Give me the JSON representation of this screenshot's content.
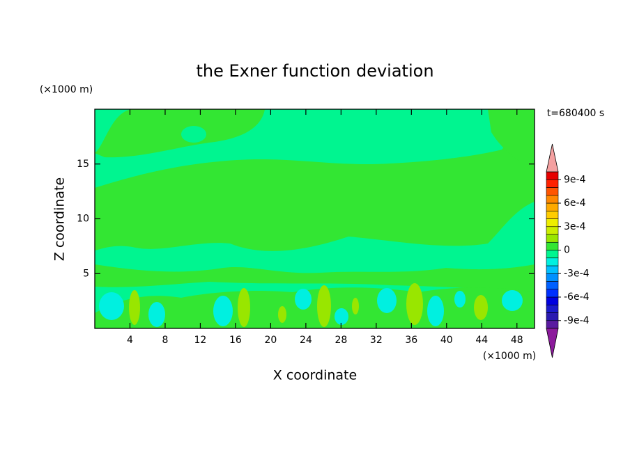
{
  "chart_data": {
    "type": "contour",
    "title": "the Exner function deviation",
    "x_label": "X coordinate",
    "y_label": "Z coordinate",
    "x_unit": "(×1000 m)",
    "y_unit": "(×1000 m)",
    "time_label": "t=680400 s",
    "xlim": [
      0,
      50
    ],
    "xticks": [
      4,
      8,
      12,
      16,
      20,
      24,
      28,
      32,
      36,
      40,
      44,
      48
    ],
    "ylim": [
      0,
      20
    ],
    "yticks": [
      5,
      10,
      15
    ],
    "levels": [
      -0.001,
      -0.0009,
      -0.0008,
      -0.0007,
      -0.0006,
      -0.0005,
      -0.0004,
      -0.0003,
      -0.0002,
      -0.0001,
      0,
      0.0001,
      0.0002,
      0.0003,
      0.0004,
      0.0005,
      0.0006,
      0.0007,
      0.0008,
      0.0009,
      0.001
    ],
    "colors": [
      "#5a1aa0",
      "#2a1ab0",
      "#1a1acc",
      "#0000e0",
      "#0030ff",
      "#0060ff",
      "#0090ff",
      "#00c0ff",
      "#00f0e0",
      "#00f590",
      "#33e633",
      "#99e600",
      "#ccee00",
      "#eeee00",
      "#ffcc00",
      "#ffaa00",
      "#ff8800",
      "#ff5500",
      "#ff2200",
      "#e60000"
    ],
    "over_color": "#f4a0a0",
    "under_color": "#8b1a9b",
    "colorbar_ticks": [
      {
        "value": -0.0009,
        "label": "-9e-4"
      },
      {
        "value": -0.0006,
        "label": "-6e-4"
      },
      {
        "value": -0.0003,
        "label": "-3e-4"
      },
      0,
      {
        "value": 0.0003,
        "label": "3e-4"
      },
      {
        "value": 0.0006,
        "label": "6e-4"
      },
      {
        "value": 0.0009,
        "label": "9e-4"
      }
    ]
  }
}
